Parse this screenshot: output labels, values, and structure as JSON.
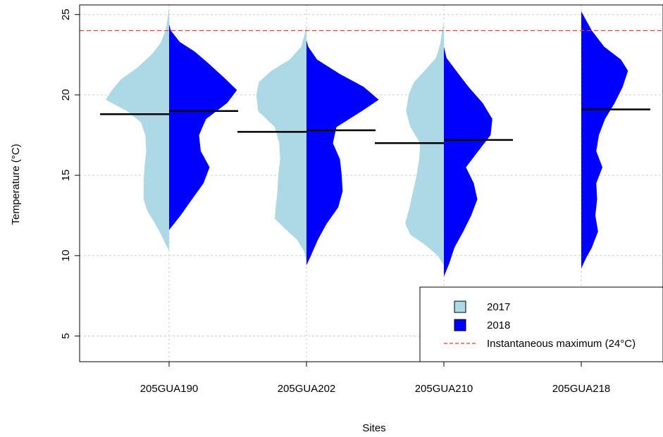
{
  "chart_data": {
    "type": "split-violin",
    "xlabel": "Sites",
    "ylabel": "Temperature (°C)",
    "ylim": [
      3.4,
      25.6
    ],
    "yticks": [
      5,
      10,
      15,
      20,
      25
    ],
    "grid": true,
    "categories": [
      "205GUA190",
      "205GUA202",
      "205GUA210",
      "205GUA218"
    ],
    "threshold": {
      "value": 24,
      "label": "Instantaneous maximum (24°C)",
      "color": "#ff3030"
    },
    "legend": {
      "position": "bottom-right",
      "entries": [
        {
          "label": "2017",
          "color": "#add8e6",
          "marker": "box"
        },
        {
          "label": "2018",
          "color": "#0000ff",
          "marker": "box"
        },
        {
          "label": "Instantaneous maximum (24°C)",
          "color": "#ff3030",
          "marker": "dashed-line"
        }
      ]
    },
    "series": [
      {
        "name": "2017",
        "side": "left",
        "color": "#add8e6",
        "sites": [
          {
            "category": "205GUA190",
            "median": 18.8,
            "profile": [
              [
                10.3,
                0
              ],
              [
                10.7,
                0.04
              ],
              [
                11.3,
                0.09
              ],
              [
                12.0,
                0.16
              ],
              [
                12.8,
                0.25
              ],
              [
                13.5,
                0.29
              ],
              [
                14.5,
                0.29
              ],
              [
                15.5,
                0.28
              ],
              [
                16.5,
                0.26
              ],
              [
                17.5,
                0.27
              ],
              [
                18.3,
                0.32
              ],
              [
                19.0,
                0.48
              ],
              [
                19.7,
                0.72
              ],
              [
                20.3,
                0.65
              ],
              [
                21.0,
                0.54
              ],
              [
                21.7,
                0.36
              ],
              [
                22.5,
                0.2
              ],
              [
                23.2,
                0.1
              ],
              [
                24.0,
                0.04
              ],
              [
                24.6,
                0.02
              ],
              [
                25.5,
                0
              ]
            ]
          },
          {
            "category": "205GUA202",
            "median": 17.7,
            "profile": [
              [
                9.7,
                0
              ],
              [
                10.3,
                0.03
              ],
              [
                11.0,
                0.11
              ],
              [
                11.7,
                0.25
              ],
              [
                12.3,
                0.36
              ],
              [
                13.0,
                0.35
              ],
              [
                14.0,
                0.33
              ],
              [
                15.0,
                0.32
              ],
              [
                16.0,
                0.3
              ],
              [
                17.0,
                0.31
              ],
              [
                18.0,
                0.36
              ],
              [
                19.0,
                0.55
              ],
              [
                20.0,
                0.57
              ],
              [
                20.8,
                0.54
              ],
              [
                21.5,
                0.4
              ],
              [
                22.2,
                0.19
              ],
              [
                23.0,
                0.06
              ],
              [
                23.8,
                0.02
              ],
              [
                24.3,
                0
              ]
            ]
          },
          {
            "category": "205GUA210",
            "median": 17.0,
            "profile": [
              [
                9.4,
                0
              ],
              [
                10.0,
                0.07
              ],
              [
                10.7,
                0.22
              ],
              [
                11.3,
                0.38
              ],
              [
                12.0,
                0.44
              ],
              [
                13.0,
                0.39
              ],
              [
                14.0,
                0.35
              ],
              [
                15.0,
                0.31
              ],
              [
                16.0,
                0.28
              ],
              [
                17.0,
                0.27
              ],
              [
                18.0,
                0.38
              ],
              [
                19.0,
                0.43
              ],
              [
                20.0,
                0.4
              ],
              [
                20.8,
                0.34
              ],
              [
                21.5,
                0.22
              ],
              [
                22.3,
                0.09
              ],
              [
                23.2,
                0.04
              ],
              [
                24.0,
                0.02
              ],
              [
                24.5,
                0
              ]
            ]
          }
        ]
      },
      {
        "name": "2018",
        "side": "right",
        "color": "#0000ff",
        "sites": [
          {
            "category": "205GUA190",
            "median": 19.0,
            "profile": [
              [
                11.6,
                0
              ],
              [
                12.5,
                0.13
              ],
              [
                13.5,
                0.26
              ],
              [
                14.5,
                0.39
              ],
              [
                15.5,
                0.46
              ],
              [
                16.5,
                0.36
              ],
              [
                17.5,
                0.34
              ],
              [
                18.5,
                0.42
              ],
              [
                19.5,
                0.66
              ],
              [
                20.3,
                0.77
              ],
              [
                21.0,
                0.64
              ],
              [
                22.0,
                0.44
              ],
              [
                22.7,
                0.29
              ],
              [
                23.3,
                0.12
              ],
              [
                24.0,
                0.02
              ],
              [
                24.4,
                0
              ]
            ]
          },
          {
            "category": "205GUA202",
            "median": 17.8,
            "profile": [
              [
                9.4,
                0
              ],
              [
                10.0,
                0.05
              ],
              [
                11.0,
                0.13
              ],
              [
                12.0,
                0.23
              ],
              [
                13.0,
                0.36
              ],
              [
                14.0,
                0.41
              ],
              [
                15.0,
                0.4
              ],
              [
                16.0,
                0.38
              ],
              [
                17.0,
                0.3
              ],
              [
                18.0,
                0.34
              ],
              [
                19.0,
                0.63
              ],
              [
                19.7,
                0.82
              ],
              [
                20.5,
                0.65
              ],
              [
                21.3,
                0.38
              ],
              [
                22.2,
                0.12
              ],
              [
                23.0,
                0.02
              ],
              [
                23.4,
                0
              ]
            ]
          },
          {
            "category": "205GUA210",
            "median": 17.2,
            "profile": [
              [
                8.7,
                0
              ],
              [
                9.5,
                0.06
              ],
              [
                10.5,
                0.12
              ],
              [
                11.5,
                0.22
              ],
              [
                12.5,
                0.31
              ],
              [
                13.5,
                0.38
              ],
              [
                14.5,
                0.34
              ],
              [
                15.5,
                0.25
              ],
              [
                16.5,
                0.39
              ],
              [
                17.5,
                0.53
              ],
              [
                18.5,
                0.55
              ],
              [
                19.5,
                0.44
              ],
              [
                20.5,
                0.28
              ],
              [
                21.5,
                0.14
              ],
              [
                22.3,
                0.03
              ],
              [
                23.0,
                0
              ]
            ]
          },
          {
            "category": "205GUA218",
            "median": 19.1,
            "profile": [
              [
                9.2,
                0
              ],
              [
                9.8,
                0.05
              ],
              [
                10.5,
                0.12
              ],
              [
                11.5,
                0.19
              ],
              [
                12.5,
                0.16
              ],
              [
                13.5,
                0.18
              ],
              [
                14.5,
                0.17
              ],
              [
                15.5,
                0.24
              ],
              [
                16.5,
                0.17
              ],
              [
                17.5,
                0.2
              ],
              [
                18.5,
                0.27
              ],
              [
                19.5,
                0.38
              ],
              [
                20.5,
                0.47
              ],
              [
                21.5,
                0.53
              ],
              [
                22.2,
                0.45
              ],
              [
                23.0,
                0.26
              ],
              [
                24.0,
                0.12
              ],
              [
                24.7,
                0.05
              ],
              [
                25.2,
                0
              ]
            ]
          }
        ]
      }
    ]
  }
}
